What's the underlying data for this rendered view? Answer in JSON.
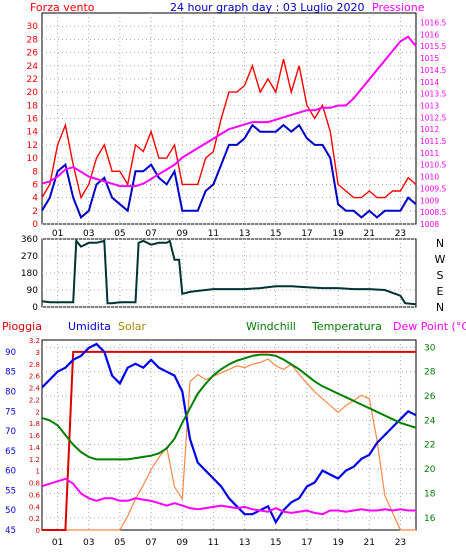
{
  "header": {
    "left_title": "Forza vento",
    "center_title": "24 hour graph day : 03 Luglio 2020",
    "right_title": "Pressione"
  },
  "hours": [
    "01",
    "03",
    "05",
    "07",
    "09",
    "11",
    "13",
    "15",
    "17",
    "19",
    "21",
    "23"
  ],
  "colors": {
    "wind_gust": "#ff0000",
    "wind_avg": "#0000cc",
    "pressure": "#ff00ff",
    "direction": "#003333",
    "rain": "#dd0000",
    "humidity": "#0000ee",
    "solar": "#ff8844",
    "windchill": "#008000",
    "temperature": "#008000",
    "dewpoint": "#ff00ff",
    "grid": "#aaaaaa"
  },
  "chart_data": [
    {
      "type": "line",
      "x": [
        0,
        0.5,
        1,
        1.5,
        2,
        2.5,
        3,
        3.5,
        4,
        4.5,
        5,
        5.5,
        6,
        6.5,
        7,
        7.5,
        8,
        8.5,
        9,
        9.5,
        10,
        10.5,
        11,
        11.5,
        12,
        12.5,
        13,
        13.5,
        14,
        14.5,
        15,
        15.5,
        16,
        16.5,
        17,
        17.5,
        18,
        18.5,
        19,
        19.5,
        20,
        20.5,
        21,
        21.5,
        22,
        22.5,
        23,
        23.5,
        24
      ],
      "series": [
        {
          "name": "gust",
          "axis": "left",
          "values": [
            4,
            6,
            12,
            15,
            9,
            4,
            6,
            10,
            12,
            8,
            8,
            6,
            12,
            11,
            14,
            10,
            10,
            12,
            6,
            6,
            6,
            10,
            11,
            16,
            20,
            20,
            21,
            24,
            20,
            22,
            20,
            25,
            20,
            24,
            18,
            16,
            18,
            14,
            6,
            5,
            4,
            4,
            5,
            4,
            4,
            5,
            5,
            7,
            6
          ]
        },
        {
          "name": "wind",
          "axis": "left",
          "values": [
            2,
            4,
            8,
            9,
            4,
            1,
            2,
            6,
            7,
            4,
            3,
            2,
            8,
            8,
            9,
            7,
            6,
            8,
            2,
            2,
            2,
            5,
            6,
            9,
            12,
            12,
            13,
            15,
            14,
            14,
            14,
            15,
            14,
            15,
            13,
            12,
            12,
            10,
            3,
            2,
            2,
            1,
            2,
            1,
            2,
            2,
            2,
            4,
            3
          ]
        },
        {
          "name": "pressure",
          "axis": "right",
          "values": [
            1009.7,
            1009.8,
            1010,
            1010.3,
            1010.4,
            1010.2,
            1010,
            1009.9,
            1009.8,
            1009.7,
            1009.6,
            1009.6,
            1009.6,
            1009.7,
            1009.9,
            1010.1,
            1010.3,
            1010.5,
            1010.8,
            1011,
            1011.2,
            1011.4,
            1011.6,
            1011.8,
            1012,
            1012.1,
            1012.2,
            1012.3,
            1012.3,
            1012.3,
            1012.4,
            1012.5,
            1012.6,
            1012.7,
            1012.8,
            1012.8,
            1012.9,
            1012.9,
            1013,
            1013,
            1013.3,
            1013.7,
            1014.1,
            1014.5,
            1014.9,
            1015.3,
            1015.7,
            1015.9,
            1015.5
          ]
        }
      ],
      "title": "24 hour graph day : 03 Luglio 2020",
      "ylabel_left": "Forza vento",
      "ylabel_right": "Pressione",
      "yticks_left": [
        "0",
        "2",
        "4",
        "6",
        "8",
        "10",
        "12",
        "14",
        "16",
        "18",
        "20",
        "22",
        "24",
        "26",
        "28",
        "30"
      ],
      "yticks_right": [
        "1008",
        "1008.5",
        "1009",
        "1009.5",
        "1010",
        "1010.5",
        "1011",
        "1011.5",
        "1012",
        "1012.5",
        "1013",
        "1013.5",
        "1014",
        "1014.5",
        "1015",
        "1015.5",
        "1016",
        "1016.5"
      ],
      "ylim_left": [
        0,
        32
      ],
      "ylim_right": [
        1008,
        1016.9
      ],
      "xticks": [
        "01",
        "03",
        "05",
        "07",
        "09",
        "11",
        "13",
        "15",
        "17",
        "19",
        "21",
        "23"
      ],
      "grid": true
    },
    {
      "type": "line",
      "x": [
        0,
        0.5,
        1,
        1.5,
        2,
        2.2,
        2.5,
        3,
        3.5,
        4,
        4.2,
        4.5,
        5,
        5.5,
        6,
        6.2,
        6.5,
        7,
        7.5,
        8,
        8.2,
        8.5,
        8.8,
        9,
        9.5,
        10,
        11,
        12,
        13,
        14,
        15,
        16,
        17,
        18,
        19,
        20,
        21,
        22,
        23,
        23.3,
        24
      ],
      "series": [
        {
          "name": "direction",
          "values": [
            30,
            25,
            25,
            25,
            25,
            350,
            320,
            340,
            340,
            350,
            20,
            20,
            25,
            25,
            25,
            340,
            350,
            330,
            340,
            340,
            350,
            250,
            250,
            70,
            80,
            85,
            95,
            95,
            95,
            100,
            110,
            110,
            105,
            100,
            100,
            95,
            95,
            90,
            60,
            20,
            15
          ]
        }
      ],
      "yticks": [
        "0",
        "90",
        "180",
        "270",
        "360"
      ],
      "ylim": [
        0,
        360
      ],
      "compass": [
        "N",
        "W",
        "S",
        "E",
        "N"
      ],
      "xticks": [
        "01",
        "03",
        "05",
        "07",
        "09",
        "11",
        "13",
        "15",
        "17",
        "19",
        "21",
        "23"
      ],
      "grid": true
    },
    {
      "type": "line",
      "x": [
        0,
        0.5,
        1,
        1.5,
        2,
        2.5,
        3,
        3.5,
        4,
        4.5,
        5,
        5.5,
        6,
        6.5,
        7,
        7.5,
        8,
        8.5,
        9,
        9.5,
        10,
        10.5,
        11,
        11.5,
        12,
        12.5,
        13,
        13.5,
        14,
        14.5,
        15,
        15.5,
        16,
        16.5,
        17,
        17.5,
        18,
        18.5,
        19,
        19.5,
        20,
        20.5,
        21,
        21.5,
        22,
        22.5,
        23,
        23.5,
        24
      ],
      "series": [
        {
          "name": "Pioggia",
          "axis": "rain",
          "values": [
            0,
            0,
            0,
            0,
            3.0,
            3.0,
            3.0,
            3.0,
            3.0,
            3.0,
            3.0,
            3.0,
            3.0,
            3.0,
            3.0,
            3.0,
            3.0,
            3.0,
            3.0,
            3.0,
            3.0,
            3.0,
            3.0,
            3.0,
            3.0,
            3.0,
            3.0,
            3.0,
            3.0,
            3.0,
            3.0,
            3.0,
            3.0,
            3.0,
            3.0,
            3.0,
            3.0,
            3.0,
            3.0,
            3.0,
            3.0,
            3.0,
            3.0,
            3.0,
            3.0,
            3.0,
            3.0,
            3.0,
            3.0
          ]
        },
        {
          "name": "Umidita",
          "axis": "humidity",
          "values": [
            81,
            83,
            85,
            86,
            88,
            89,
            91,
            92,
            90,
            84,
            82,
            86,
            87,
            86,
            88,
            86,
            85,
            84,
            80,
            68,
            62,
            60,
            58,
            56,
            53,
            51,
            49,
            49,
            50,
            51,
            47,
            50,
            52,
            53,
            56,
            57,
            60,
            59,
            58,
            60,
            61,
            63,
            64,
            67,
            69,
            71,
            73,
            75,
            74
          ]
        },
        {
          "name": "Solar",
          "values": [
            0,
            0,
            0,
            0,
            0,
            0,
            0,
            0,
            0,
            0,
            0,
            80,
            180,
            260,
            350,
            420,
            480,
            250,
            180,
            860,
            900,
            870,
            890,
            910,
            930,
            950,
            940,
            960,
            970,
            990,
            950,
            930,
            960,
            900,
            850,
            800,
            760,
            720,
            680,
            720,
            750,
            780,
            760,
            520,
            200,
            100,
            0,
            0,
            0
          ]
        },
        {
          "name": "Windchill",
          "axis": "temp",
          "values": [
            24.2,
            24,
            23.6,
            22.8,
            22,
            21.4,
            21,
            20.8,
            20.8,
            20.8,
            20.8,
            20.8,
            20.9,
            21,
            21.1,
            21.3,
            21.7,
            22.5,
            23.8,
            25,
            26.2,
            27,
            27.7,
            28.2,
            28.6,
            28.9,
            29.1,
            29.3,
            29.4,
            29.4,
            29.3,
            29,
            28.6,
            28.2,
            27.7,
            27.2,
            26.8,
            26.5,
            26.2,
            25.9,
            25.6,
            25.3,
            25.0,
            24.7,
            24.4,
            24.1,
            23.8,
            23.6,
            23.4
          ]
        },
        {
          "name": "Temperatura",
          "axis": "temp",
          "values": [
            24.2,
            24,
            23.6,
            22.8,
            22,
            21.4,
            21,
            20.8,
            20.8,
            20.8,
            20.8,
            20.8,
            20.9,
            21,
            21.1,
            21.3,
            21.7,
            22.5,
            23.8,
            25,
            26.2,
            27,
            27.7,
            28.2,
            28.6,
            28.9,
            29.1,
            29.3,
            29.4,
            29.4,
            29.3,
            29,
            28.6,
            28.2,
            27.7,
            27.2,
            26.8,
            26.5,
            26.2,
            25.9,
            25.6,
            25.3,
            25.0,
            24.7,
            24.4,
            24.1,
            23.8,
            23.6,
            23.4
          ]
        },
        {
          "name": "Dew Point (°C)",
          "axis": "temp",
          "values": [
            18.6,
            18.8,
            19.0,
            19.2,
            18.8,
            18.0,
            17.6,
            17.4,
            17.6,
            17.6,
            17.4,
            17.4,
            17.6,
            17.5,
            17.4,
            17.2,
            17.0,
            17.2,
            17.0,
            16.8,
            16.7,
            16.8,
            16.9,
            17.0,
            16.9,
            16.8,
            16.9,
            16.7,
            16.6,
            16.5,
            16.8,
            16.5,
            16.4,
            16.5,
            16.6,
            16.4,
            16.3,
            16.6,
            16.6,
            16.5,
            16.6,
            16.7,
            16.6,
            16.6,
            16.7,
            16.6,
            16.7,
            16.6,
            16.6
          ]
        }
      ],
      "legend": [
        "Pioggia",
        "Umidita",
        "Solar",
        "Windchill",
        "Temperatura",
        "Dew Point (°C)"
      ],
      "yticks_rain": [
        "0",
        "0.2",
        "0.4",
        "0.6",
        "0.8",
        "1",
        "1.2",
        "1.4",
        "1.6",
        "1.8",
        "2",
        "2.2",
        "2.4",
        "2.6",
        "2.8",
        "3",
        "3.2"
      ],
      "yticks_humidity": [
        "45",
        "50",
        "55",
        "60",
        "65",
        "70",
        "75",
        "80",
        "85",
        "90"
      ],
      "yticks_temp": [
        "16",
        "18",
        "20",
        "22",
        "24",
        "26",
        "28",
        "30"
      ],
      "ylim_rain": [
        0,
        3.2
      ],
      "ylim_humidity": [
        45,
        93
      ],
      "ylim_temp": [
        15,
        30.6
      ],
      "xticks": [
        "01",
        "03",
        "05",
        "07",
        "09",
        "11",
        "13",
        "15",
        "17",
        "19",
        "21",
        "23"
      ],
      "grid": true
    }
  ]
}
